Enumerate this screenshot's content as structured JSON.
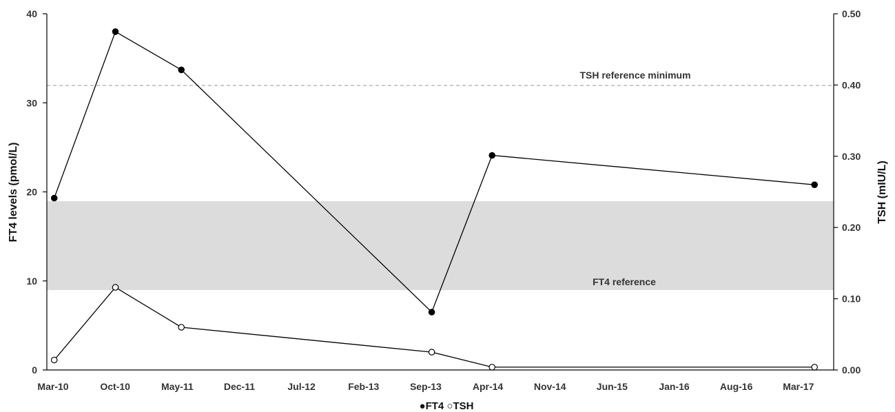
{
  "chart_data": {
    "type": "line",
    "x_tick_labels": [
      "Mar-10",
      "Oct-10",
      "May-11",
      "Dec-11",
      "Jul-12",
      "Feb-13",
      "Sep-13",
      "Apr-14",
      "Nov-14",
      "Jun-15",
      "Jan-16",
      "Aug-16",
      "Mar-17"
    ],
    "y_left": {
      "label": "FT4 levels (pmol/L)",
      "range": [
        0,
        40
      ],
      "ticks": [
        "0",
        "10",
        "20",
        "30",
        "40"
      ]
    },
    "y_right": {
      "label": "TSH (mIU/L)",
      "range": [
        0,
        0.5
      ],
      "ticks": [
        "0.00",
        "0.10",
        "0.20",
        "0.30",
        "0.40",
        "0.50"
      ]
    },
    "series": [
      {
        "name": "FT4",
        "axis": "left",
        "marker": "filled-circle",
        "points": [
          {
            "x": "2010-03-05",
            "y": 19.3
          },
          {
            "x": "2010-10-01",
            "y": 38.0
          },
          {
            "x": "2011-05-15",
            "y": 33.7
          },
          {
            "x": "2013-09-20",
            "y": 6.5
          },
          {
            "x": "2014-04-15",
            "y": 24.1
          },
          {
            "x": "2017-04-25",
            "y": 20.8
          }
        ]
      },
      {
        "name": "TSH",
        "axis": "right",
        "marker": "open-circle",
        "points": [
          {
            "x": "2010-03-05",
            "y": 0.014
          },
          {
            "x": "2010-10-01",
            "y": 0.116
          },
          {
            "x": "2011-05-15",
            "y": 0.06
          },
          {
            "x": "2013-09-20",
            "y": 0.025
          },
          {
            "x": "2014-04-15",
            "y": 0.004
          },
          {
            "x": "2017-04-25",
            "y": 0.004
          }
        ]
      }
    ],
    "reference_band": {
      "label": "FT4 reference",
      "axis": "left",
      "min": 9,
      "max": 19,
      "color": "#dcdcdc"
    },
    "reference_line": {
      "label": "TSH reference minimum",
      "axis": "right",
      "value": 0.4,
      "style": "dashed",
      "color": "#aaaaaa"
    },
    "legend": {
      "position": "bottom-center",
      "text": "●FT4 ○TSH"
    },
    "grid": false
  }
}
